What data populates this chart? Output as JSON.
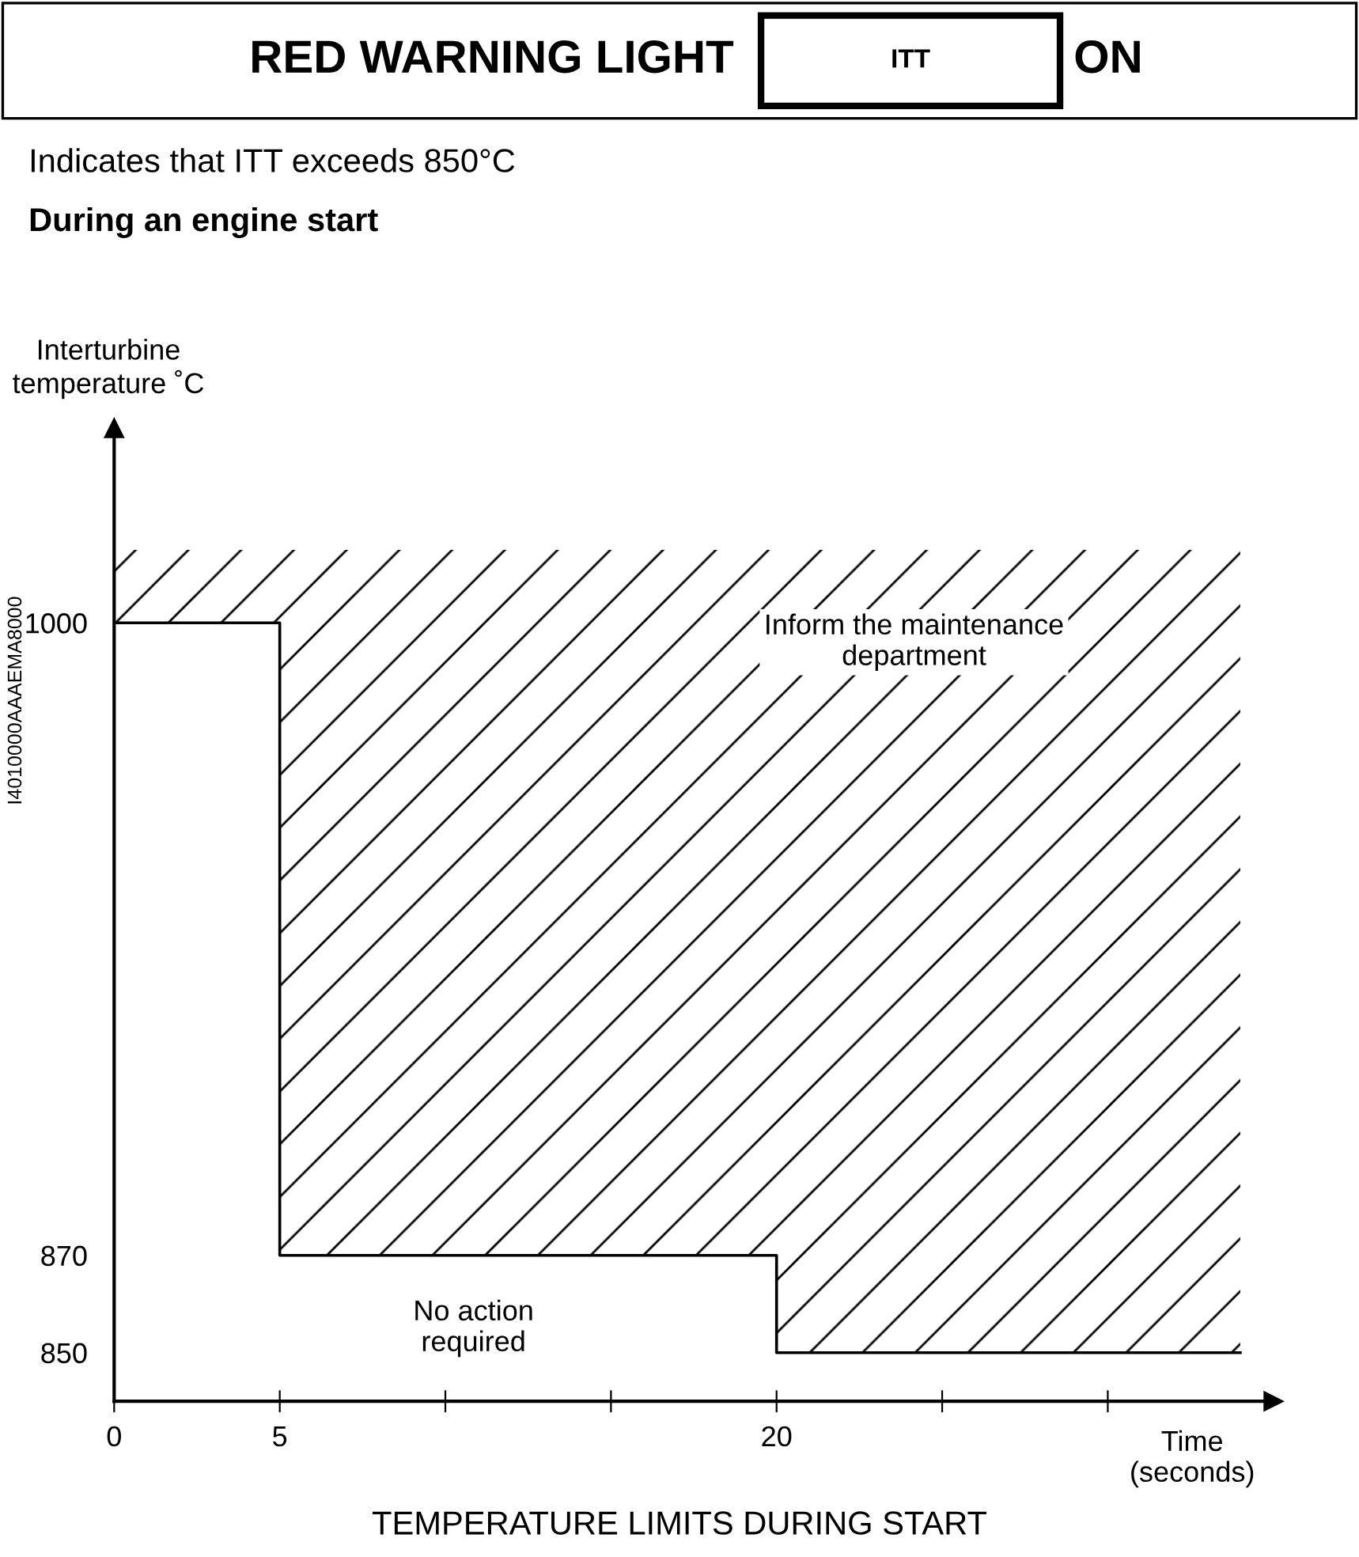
{
  "chart_data": {
    "type": "step",
    "title": "RED WARNING LIGHT",
    "subtitle": "Indicates that ITT exceeds 850°C",
    "xlabel": "Time\n(seconds)",
    "ylabel": "Interturbine\ntemperature ˚C",
    "annotations": [
      "ITT",
      "ON",
      "During an engine start",
      "Inform the maintenance\ndepartment",
      "No action\nrequired",
      "I4010000AAAEMA8000",
      "TEMPERATURE LIMITS DURING START"
    ],
    "x": [
      0,
      5,
      20,
      34
    ],
    "series": [
      {
        "color": "#000000",
        "values": [
          1000,
          870,
          850,
          850
        ],
        "lower": [
          1000,
          870,
          850,
          850
        ],
        "upper": [
          1015,
          1015,
          1015,
          1015
        ]
      }
    ],
    "xlim": [
      0,
      35
    ],
    "ylim": [
      840,
      1040
    ],
    "xticks": [
      0,
      5,
      {
        "value": 10,
        "label": null
      },
      {
        "value": 15,
        "label": null
      },
      20,
      {
        "value": 25,
        "label": null
      },
      {
        "value": 30,
        "label": null
      }
    ],
    "yticks": [
      850,
      870,
      1000
    ],
    "grid": false,
    "legend": false,
    "marker": "none",
    "line_style": "solid"
  }
}
